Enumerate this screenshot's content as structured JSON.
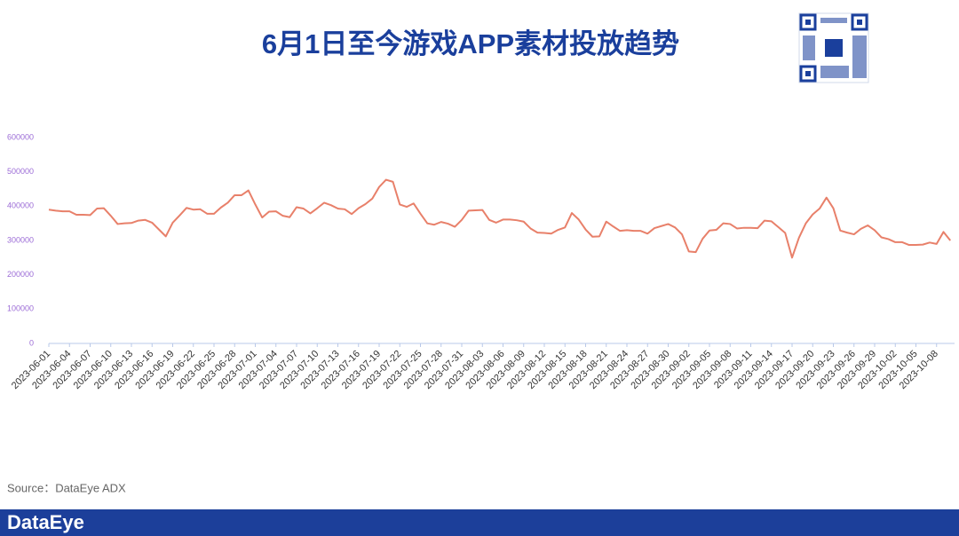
{
  "chart_data": {
    "type": "line",
    "title": "6月1日至今游戏APP素材投放趋势",
    "categories": [
      "2023-06-01",
      null,
      null,
      "2023-06-04",
      null,
      null,
      "2023-06-07",
      null,
      null,
      "2023-06-10",
      null,
      null,
      "2023-06-13",
      null,
      null,
      "2023-06-16",
      null,
      null,
      "2023-06-19",
      null,
      null,
      "2023-06-22",
      null,
      null,
      "2023-06-25",
      null,
      null,
      "2023-06-28",
      null,
      null,
      "2023-07-01",
      null,
      null,
      "2023-07-04",
      null,
      null,
      "2023-07-07",
      null,
      null,
      "2023-07-10",
      null,
      null,
      "2023-07-13",
      null,
      null,
      "2023-07-16",
      null,
      null,
      "2023-07-19",
      null,
      null,
      "2023-07-22",
      null,
      null,
      "2023-07-25",
      null,
      null,
      "2023-07-28",
      null,
      null,
      "2023-07-31",
      null,
      null,
      "2023-08-03",
      null,
      null,
      "2023-08-06",
      null,
      null,
      "2023-08-09",
      null,
      null,
      "2023-08-12",
      null,
      null,
      "2023-08-15",
      null,
      null,
      "2023-08-18",
      null,
      null,
      "2023-08-21",
      null,
      null,
      "2023-08-24",
      null,
      null,
      "2023-08-27",
      null,
      null,
      "2023-08-30",
      null,
      null,
      "2023-09-02",
      null,
      null,
      "2023-09-05",
      null,
      null,
      "2023-09-08",
      null,
      null,
      "2023-09-11",
      null,
      null,
      "2023-09-14",
      null,
      null,
      "2023-09-17",
      null,
      null,
      "2023-09-20",
      null,
      null,
      "2023-09-23",
      null,
      null,
      "2023-09-26",
      null,
      null,
      "2023-09-29",
      null,
      null,
      "2023-10-02",
      null,
      null,
      "2023-10-05",
      null,
      null,
      "2023-10-08",
      null,
      null
    ],
    "values": [
      390000,
      387000,
      385000,
      385000,
      375000,
      375000,
      374000,
      393000,
      394000,
      372000,
      348000,
      350000,
      351000,
      358000,
      360000,
      352000,
      332000,
      312000,
      352000,
      373000,
      395000,
      390000,
      391000,
      378000,
      378000,
      396000,
      410000,
      432000,
      432000,
      446000,
      405000,
      367000,
      384000,
      385000,
      372000,
      368000,
      397000,
      393000,
      379000,
      394000,
      410000,
      403000,
      393000,
      391000,
      377000,
      394000,
      406000,
      422000,
      456000,
      477000,
      471000,
      405000,
      398000,
      408000,
      378000,
      350000,
      346000,
      354000,
      349000,
      340000,
      360000,
      387000,
      388000,
      389000,
      360000,
      352000,
      361000,
      361000,
      359000,
      355000,
      335000,
      323000,
      322000,
      320000,
      331000,
      338000,
      380000,
      361000,
      332000,
      311000,
      312000,
      355000,
      341000,
      328000,
      330000,
      328000,
      328000,
      320000,
      336000,
      342000,
      348000,
      338000,
      318000,
      268000,
      266000,
      305000,
      329000,
      331000,
      350000,
      348000,
      335000,
      337000,
      337000,
      336000,
      358000,
      356000,
      339000,
      322000,
      250000,
      308000,
      350000,
      376000,
      393000,
      425000,
      394000,
      329000,
      323000,
      318000,
      334000,
      344000,
      330000,
      309000,
      304000,
      295000,
      295000,
      287000,
      287000,
      288000,
      294000,
      290000,
      325000,
      300000
    ],
    "color": "#e8806a",
    "ylim": [
      0,
      600000
    ],
    "yticks": [
      0,
      100000,
      200000,
      300000,
      400000,
      500000,
      600000
    ]
  },
  "source": "Source：DataEye ADX",
  "brand": "DataEye"
}
